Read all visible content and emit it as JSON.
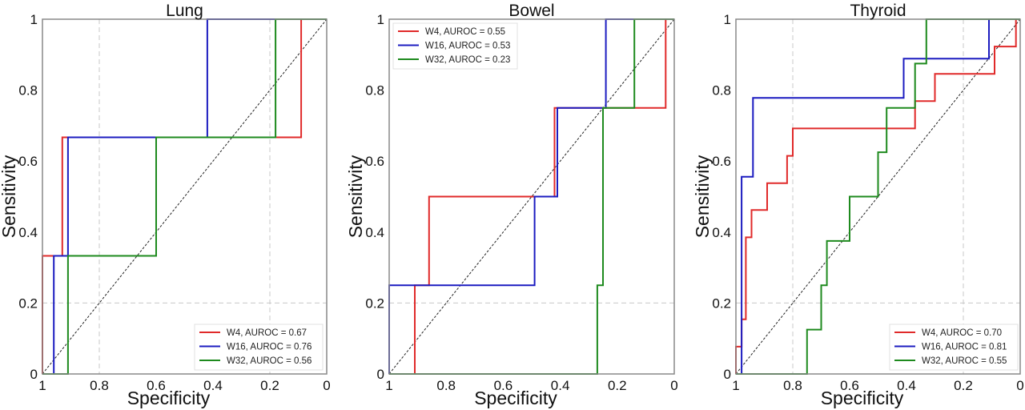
{
  "chart_data": [
    {
      "type": "line",
      "title": "Lung",
      "xlabel": "Specificity",
      "ylabel": "Sensitivity",
      "xlim": [
        1,
        0
      ],
      "ylim": [
        0,
        1
      ],
      "xticks": [
        "1",
        "0.8",
        "0.6",
        "0.4",
        "0.2",
        "0"
      ],
      "yticks": [
        "0",
        "0.2",
        "0.4",
        "0.6",
        "0.8",
        "1"
      ],
      "grid": "dashed at specificity 0.8, 0.2 and sensitivity 0.2",
      "diagonal": true,
      "legend_position": "bottom-right",
      "series": [
        {
          "name": "W4, AUROC = 0.67",
          "color": "#e02a2a",
          "specificity": [
            1,
            1,
            0.93,
            0.93,
            0.09,
            0.09,
            0
          ],
          "sensitivity": [
            0,
            0.333,
            0.333,
            0.667,
            0.667,
            1,
            1
          ]
        },
        {
          "name": "W16, AUROC = 0.76",
          "color": "#1c1cc0",
          "specificity": [
            1,
            0.96,
            0.96,
            0.91,
            0.91,
            0.42,
            0.42,
            0
          ],
          "sensitivity": [
            0,
            0,
            0.333,
            0.333,
            0.667,
            0.667,
            1,
            1
          ]
        },
        {
          "name": "W32, AUROC = 0.56",
          "color": "#1e8a1e",
          "specificity": [
            1,
            0.91,
            0.91,
            0.6,
            0.6,
            0.18,
            0.18,
            0
          ],
          "sensitivity": [
            0,
            0,
            0.333,
            0.333,
            0.667,
            0.667,
            1,
            1
          ]
        }
      ]
    },
    {
      "type": "line",
      "title": "Bowel",
      "xlabel": "Specificity",
      "ylabel": "Sensitivity",
      "xlim": [
        1,
        0
      ],
      "ylim": [
        0,
        1
      ],
      "xticks": [
        "1",
        "0.8",
        "0.6",
        "0.4",
        "0.2",
        "0"
      ],
      "yticks": [
        "0",
        "0.2",
        "0.4",
        "0.6",
        "0.8",
        "1"
      ],
      "grid": "dashed at sensitivity 0.2",
      "diagonal": true,
      "legend_position": "top-left",
      "series": [
        {
          "name": "W4, AUROC = 0.55",
          "color": "#e02a2a",
          "specificity": [
            1,
            0.91,
            0.91,
            0.86,
            0.86,
            0.42,
            0.42,
            0.03,
            0.03,
            0
          ],
          "sensitivity": [
            0,
            0,
            0.25,
            0.25,
            0.5,
            0.5,
            0.75,
            0.75,
            1,
            1
          ]
        },
        {
          "name": "W16, AUROC = 0.53",
          "color": "#1c1cc0",
          "specificity": [
            1,
            1,
            0.49,
            0.49,
            0.41,
            0.41,
            0.24,
            0.24,
            0
          ],
          "sensitivity": [
            0,
            0.25,
            0.25,
            0.5,
            0.5,
            0.75,
            0.75,
            1,
            1
          ]
        },
        {
          "name": "W32, AUROC = 0.23",
          "color": "#1e8a1e",
          "specificity": [
            1,
            0.27,
            0.27,
            0.25,
            0.25,
            0.14,
            0.14,
            0
          ],
          "sensitivity": [
            0,
            0,
            0.25,
            0.25,
            0.75,
            0.75,
            1,
            1
          ]
        }
      ]
    },
    {
      "type": "line",
      "title": "Thyroid",
      "xlabel": "Specificity",
      "ylabel": "Sensitivity",
      "xlim": [
        1,
        0
      ],
      "ylim": [
        0,
        1
      ],
      "xticks": [
        "1",
        "0.8",
        "0.6",
        "0.4",
        "0.2",
        "0"
      ],
      "yticks": [
        "0",
        "0.2",
        "0.4",
        "0.6",
        "0.8",
        "1"
      ],
      "grid": "dashed at specificity 0.8, 0.2 and sensitivity 0.2",
      "diagonal": true,
      "legend_position": "bottom-right",
      "series": [
        {
          "name": "W4, AUROC = 0.70",
          "color": "#e02a2a",
          "specificity": [
            1,
            1,
            0.98,
            0.98,
            0.965,
            0.965,
            0.945,
            0.945,
            0.89,
            0.89,
            0.82,
            0.82,
            0.8,
            0.8,
            0.37,
            0.37,
            0.3,
            0.3,
            0.09,
            0.09,
            0.015,
            0.015
          ],
          "sensitivity": [
            0,
            0.077,
            0.077,
            0.154,
            0.154,
            0.385,
            0.385,
            0.462,
            0.462,
            0.538,
            0.538,
            0.615,
            0.615,
            0.692,
            0.692,
            0.769,
            0.769,
            0.846,
            0.846,
            0.923,
            0.923,
            1
          ]
        },
        {
          "name": "W16, AUROC = 0.81",
          "color": "#1c1cc0",
          "specificity": [
            1,
            0.98,
            0.98,
            0.94,
            0.94,
            0.41,
            0.41,
            0.11,
            0.11,
            0
          ],
          "sensitivity": [
            0,
            0,
            0.556,
            0.556,
            0.778,
            0.778,
            0.889,
            0.889,
            1,
            1
          ]
        },
        {
          "name": "W32, AUROC = 0.55",
          "color": "#1e8a1e",
          "specificity": [
            1,
            0.75,
            0.75,
            0.7,
            0.7,
            0.68,
            0.68,
            0.6,
            0.6,
            0.5,
            0.5,
            0.47,
            0.47,
            0.37,
            0.37,
            0.33,
            0.33,
            0
          ],
          "sensitivity": [
            0,
            0,
            0.125,
            0.125,
            0.25,
            0.25,
            0.375,
            0.375,
            0.5,
            0.5,
            0.625,
            0.625,
            0.75,
            0.75,
            0.875,
            0.875,
            1,
            1
          ]
        }
      ]
    }
  ]
}
